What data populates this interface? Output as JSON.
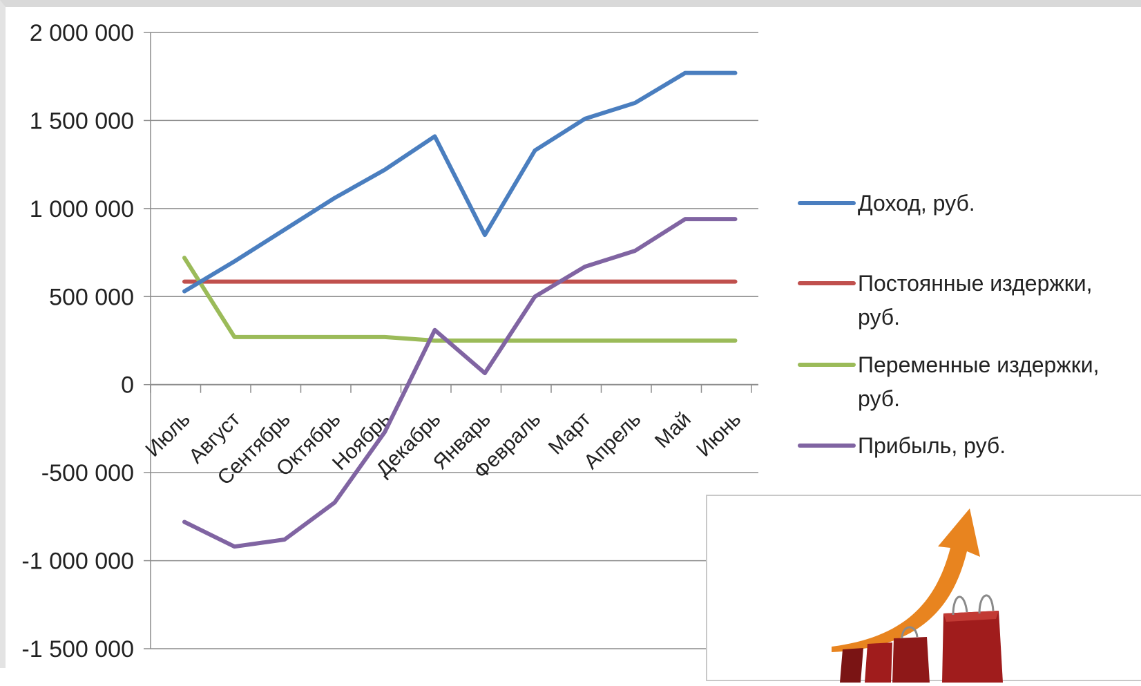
{
  "chart_data": {
    "type": "line",
    "title": "",
    "xlabel": "",
    "ylabel": "",
    "ylim": [
      -1500000,
      2000000
    ],
    "yticks": [
      2000000,
      1500000,
      1000000,
      500000,
      0,
      -500000,
      -1000000,
      -1500000
    ],
    "ytick_labels": [
      "2 000 000",
      "1 500 000",
      "1 000 000",
      "500 000",
      "0",
      "-500 000",
      "-1 000 000",
      "-1 500 000"
    ],
    "categories": [
      "Июль",
      "Август",
      "Сентябрь",
      "Октябрь",
      "Ноябрь",
      "Декабрь",
      "Январь",
      "Февраль",
      "Март",
      "Апрель",
      "Май",
      "Июнь"
    ],
    "grid": true,
    "legend_position": "right",
    "series": [
      {
        "name": "Доход, руб.",
        "color": "#4a7ebf",
        "values": [
          530000,
          700000,
          880000,
          1060000,
          1220000,
          1410000,
          850000,
          1330000,
          1510000,
          1600000,
          1770000,
          1770000
        ]
      },
      {
        "name": "Постоянные издержки, руб.",
        "color": "#c0504d",
        "values": [
          585000,
          585000,
          585000,
          585000,
          585000,
          585000,
          585000,
          585000,
          585000,
          585000,
          585000,
          585000
        ]
      },
      {
        "name": "Переменные издержки, руб.",
        "color": "#9bbb59",
        "values": [
          720000,
          270000,
          270000,
          270000,
          270000,
          250000,
          250000,
          250000,
          250000,
          250000,
          250000,
          250000
        ]
      },
      {
        "name": "Прибыль, руб.",
        "color": "#8064a2",
        "values": [
          -780000,
          -920000,
          -880000,
          -670000,
          -270000,
          310000,
          65000,
          500000,
          670000,
          760000,
          940000,
          940000
        ]
      }
    ]
  },
  "legend": {
    "item_1_line1": "Доход, руб.",
    "item_2_line1": "Постоянные издержки,",
    "item_2_line2": "руб.",
    "item_3_line1": "Переменные издержки,",
    "item_3_line2": "руб.",
    "item_4_line1": "Прибыль, руб."
  },
  "decoration": {
    "picture_icon": "shopping-bags-growth-arrow-icon",
    "bag_color": "#a01c1c",
    "arrow_color": "#e8841f"
  }
}
